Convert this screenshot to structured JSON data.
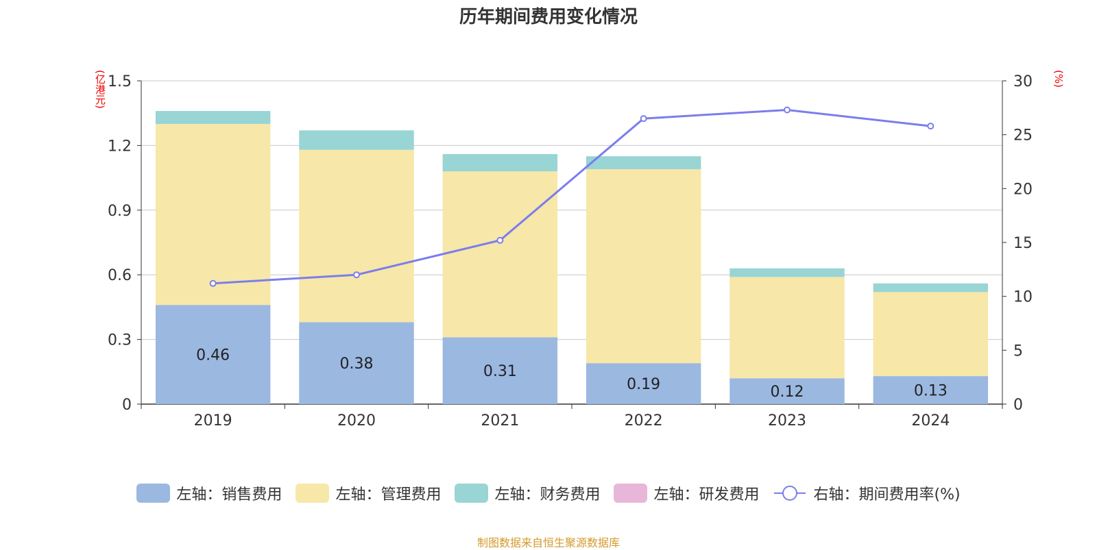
{
  "title": "历年期间费用变化情况",
  "left_unit": "(亿港元)",
  "right_unit": "(%)",
  "source": "制图数据来自恒生聚源数据库",
  "colors": {
    "sales": "#9bb8e1",
    "admin": "#f7e7a8",
    "finance": "#98d5d4",
    "rnd": "#e8b6d8",
    "line": "#7b7ded",
    "unit_label": "#ee0000",
    "source": "#d49a2c",
    "grid": "#c8c8c8",
    "axis": "#333333"
  },
  "legend": [
    {
      "label": "左轴：销售费用",
      "color_key": "sales",
      "kind": "box"
    },
    {
      "label": "左轴：管理费用",
      "color_key": "admin",
      "kind": "box"
    },
    {
      "label": "左轴：财务费用",
      "color_key": "finance",
      "kind": "box"
    },
    {
      "label": "左轴：研发费用",
      "color_key": "rnd",
      "kind": "box"
    },
    {
      "label": "右轴：期间费用率(%)",
      "color_key": "line",
      "kind": "line"
    }
  ],
  "chart_data": {
    "type": "bar",
    "stacked": true,
    "categories": [
      "2019",
      "2020",
      "2021",
      "2022",
      "2023",
      "2024"
    ],
    "series": [
      {
        "name": "左轴：销售费用",
        "axis": "left",
        "values": [
          0.46,
          0.38,
          0.31,
          0.19,
          0.12,
          0.13
        ],
        "labels": [
          "0.46",
          "0.38",
          "0.31",
          "0.19",
          "0.12",
          "0.13"
        ]
      },
      {
        "name": "左轴：管理费用",
        "axis": "left",
        "values": [
          0.84,
          0.8,
          0.77,
          0.9,
          0.47,
          0.39
        ]
      },
      {
        "name": "左轴：财务费用",
        "axis": "left",
        "values": [
          0.06,
          0.09,
          0.08,
          0.06,
          0.04,
          0.04
        ]
      },
      {
        "name": "左轴：研发费用",
        "axis": "left",
        "values": [
          0,
          0,
          0,
          0,
          0,
          0
        ]
      },
      {
        "name": "右轴：期间费用率(%)",
        "axis": "right",
        "type": "line",
        "values": [
          11.2,
          12.0,
          15.2,
          26.5,
          27.3,
          25.8
        ]
      }
    ],
    "y_left": {
      "min": 0,
      "max": 1.5,
      "ticks": [
        "0",
        "0.3",
        "0.6",
        "0.9",
        "1.2",
        "1.5"
      ]
    },
    "y_right": {
      "min": 0,
      "max": 30,
      "ticks": [
        "0",
        "5",
        "10",
        "15",
        "20",
        "25",
        "30"
      ]
    },
    "grid": true,
    "legend_position": "bottom"
  }
}
